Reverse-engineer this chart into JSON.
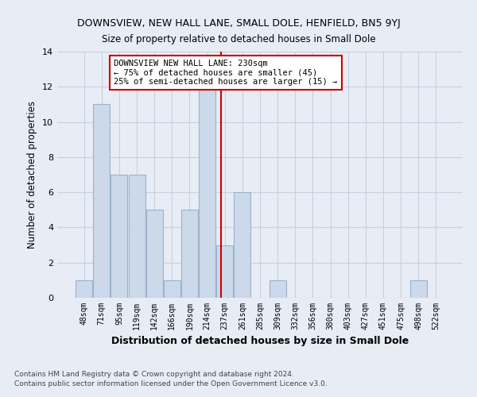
{
  "title1": "DOWNSVIEW, NEW HALL LANE, SMALL DOLE, HENFIELD, BN5 9YJ",
  "title2": "Size of property relative to detached houses in Small Dole",
  "xlabel": "Distribution of detached houses by size in Small Dole",
  "ylabel": "Number of detached properties",
  "footnote1": "Contains HM Land Registry data © Crown copyright and database right 2024.",
  "footnote2": "Contains public sector information licensed under the Open Government Licence v3.0.",
  "bar_labels": [
    "48sqm",
    "71sqm",
    "95sqm",
    "119sqm",
    "142sqm",
    "166sqm",
    "190sqm",
    "214sqm",
    "237sqm",
    "261sqm",
    "285sqm",
    "309sqm",
    "332sqm",
    "356sqm",
    "380sqm",
    "403sqm",
    "427sqm",
    "451sqm",
    "475sqm",
    "498sqm",
    "522sqm"
  ],
  "bar_values": [
    1,
    11,
    7,
    7,
    5,
    1,
    5,
    12,
    3,
    6,
    0,
    1,
    0,
    0,
    0,
    0,
    0,
    0,
    0,
    1,
    0
  ],
  "bar_color": "#ccd9ea",
  "bar_edge_color": "#9ab3cc",
  "grid_color": "#c8cfe0",
  "background_color": "#e8edf5",
  "vline_x": 7.77,
  "vline_color": "#cc0000",
  "annotation_text": "DOWNSVIEW NEW HALL LANE: 230sqm\n← 75% of detached houses are smaller (45)\n25% of semi-detached houses are larger (15) →",
  "annotation_box_color": "#ffffff",
  "annotation_box_edge": "#cc0000",
  "ylim": [
    0,
    14
  ],
  "yticks": [
    0,
    2,
    4,
    6,
    8,
    10,
    12,
    14
  ]
}
